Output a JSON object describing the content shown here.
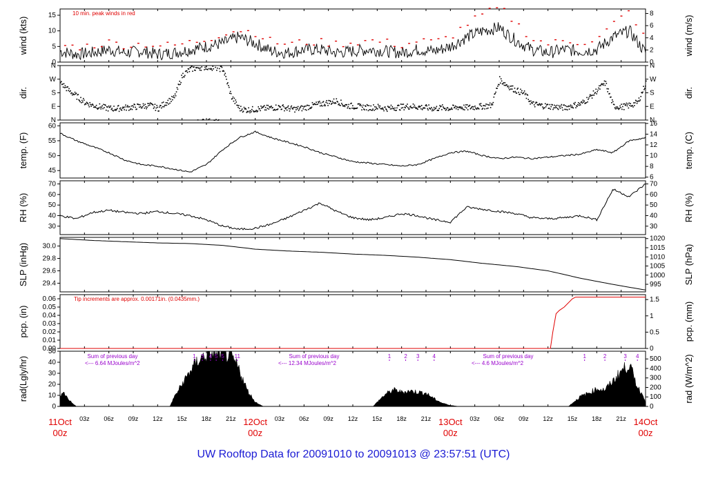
{
  "footer_text": "UW Rooftop Data for 20091010  to  20091013 @ 23:57:51  (UTC)",
  "colors": {
    "axis": "#000000",
    "red": "#e00000",
    "purple": "#9900cc",
    "footer": "#1a1ad4"
  },
  "x_axis": {
    "hour_ticks": [
      "03z",
      "06z",
      "09z",
      "12z",
      "15z",
      "18z",
      "21z",
      "03z",
      "06z",
      "09z",
      "12z",
      "15z",
      "18z",
      "21z",
      "03z",
      "06z",
      "09z",
      "12z",
      "15z",
      "18z",
      "21z"
    ],
    "day_labels": [
      {
        "day": "11Oct",
        "time": "00z"
      },
      {
        "day": "12Oct",
        "time": "00z"
      },
      {
        "day": "13Oct",
        "time": "00z"
      },
      {
        "day": "14Oct",
        "time": "00z"
      }
    ]
  },
  "chart_data": [
    {
      "name": "wind",
      "type": "line",
      "ylabel_left": "wind (kts)",
      "ylabel_right": "wind (m/s)",
      "annotation": "10 min. peak winds in red",
      "left_ticks": [
        "0",
        "5",
        "10",
        "15"
      ],
      "right_ticks": [
        "0",
        "2",
        "4",
        "6",
        "8"
      ],
      "ylim": [
        0,
        17
      ],
      "series": [
        {
          "role": "mean",
          "x": [
            0,
            2,
            4,
            6,
            8,
            10,
            12,
            14,
            16,
            18,
            20,
            22,
            24,
            26,
            28,
            30,
            32,
            34,
            36,
            38,
            40,
            42,
            44,
            46,
            48,
            50,
            52,
            54,
            56,
            58,
            60,
            62,
            64,
            66,
            68,
            70,
            72
          ],
          "values": [
            3.5,
            2.5,
            3,
            4,
            3,
            3.5,
            2.5,
            3,
            4,
            5,
            6,
            8,
            6,
            3.5,
            3,
            4,
            4,
            3,
            3.5,
            4,
            3.5,
            3,
            4,
            3.5,
            5,
            8,
            10,
            11,
            7,
            4,
            3,
            4,
            3.5,
            4,
            8,
            10,
            3
          ]
        },
        {
          "role": "peak",
          "color": "red",
          "x": [
            0,
            2,
            4,
            6,
            8,
            10,
            12,
            14,
            16,
            18,
            20,
            22,
            24,
            26,
            28,
            30,
            32,
            34,
            36,
            38,
            40,
            42,
            44,
            46,
            48,
            50,
            52,
            54,
            56,
            58,
            60,
            62,
            64,
            66,
            68,
            70,
            72
          ],
          "values": [
            5,
            4.5,
            5,
            6,
            5,
            5.5,
            5,
            5,
            6,
            7,
            9,
            10,
            9,
            6,
            5.5,
            6,
            6,
            5.5,
            6,
            6.5,
            6,
            5,
            6.5,
            6,
            8,
            12,
            15,
            17,
            12,
            7,
            5.5,
            6.5,
            6,
            7,
            12,
            16,
            6
          ]
        }
      ]
    },
    {
      "name": "dir",
      "type": "scatter",
      "ylabel_left": "dir.",
      "ylabel_right": "dir.",
      "categories": [
        "N",
        "E",
        "S",
        "W",
        "N"
      ],
      "x": [
        0,
        1,
        2,
        3,
        4,
        5,
        6,
        7,
        8,
        9,
        10,
        11,
        12,
        13,
        14,
        15,
        16,
        17,
        18,
        19,
        20,
        21,
        22,
        23,
        24,
        25,
        26,
        27,
        28,
        29,
        30,
        31,
        32,
        33,
        34,
        35,
        36,
        37,
        38,
        39,
        40,
        41,
        42,
        43,
        44,
        45,
        46,
        47,
        48,
        49,
        50,
        51,
        52,
        53,
        54,
        55,
        56,
        57,
        58,
        59,
        60,
        61,
        62,
        63,
        64,
        65,
        66,
        67,
        68,
        69,
        70,
        71,
        72
      ],
      "values": [
        250,
        200,
        160,
        120,
        100,
        90,
        80,
        80,
        85,
        90,
        95,
        100,
        80,
        120,
        150,
        300,
        340,
        350,
        355,
        350,
        340,
        160,
        80,
        70,
        75,
        80,
        85,
        90,
        80,
        75,
        85,
        100,
        110,
        120,
        130,
        100,
        95,
        90,
        85,
        90,
        80,
        85,
        90,
        95,
        90,
        85,
        80,
        85,
        80,
        90,
        85,
        90,
        95,
        100,
        270,
        230,
        200,
        180,
        110,
        100,
        95,
        90,
        85,
        100,
        110,
        150,
        200,
        250,
        95,
        90,
        100,
        120,
        250
      ]
    },
    {
      "name": "temp",
      "type": "line",
      "ylabel_left": "temp. (F)",
      "ylabel_right": "temp. (C)",
      "left_ticks": [
        "45",
        "50",
        "55",
        "60"
      ],
      "right_ticks": [
        "6",
        "8",
        "10",
        "12",
        "14",
        "16"
      ],
      "ylim": [
        42.5,
        61
      ],
      "x": [
        0,
        2,
        4,
        6,
        8,
        10,
        12,
        14,
        16,
        18,
        20,
        22,
        24,
        26,
        28,
        30,
        32,
        34,
        36,
        38,
        40,
        42,
        44,
        46,
        48,
        50,
        52,
        54,
        56,
        58,
        60,
        62,
        64,
        66,
        68,
        70,
        72
      ],
      "values": [
        57.5,
        55,
        53,
        51,
        48.5,
        47,
        46.5,
        45.5,
        44.5,
        47,
        52,
        56,
        58,
        56,
        54.5,
        53,
        51,
        49.5,
        48,
        47.5,
        47,
        46.5,
        47,
        49,
        51,
        51.5,
        50,
        49,
        49.5,
        49,
        49.5,
        50,
        50.5,
        52,
        51,
        55,
        56
      ]
    },
    {
      "name": "rh",
      "type": "line",
      "ylabel_left": "RH (%)",
      "ylabel_right": "RH (%)",
      "left_ticks": [
        "30",
        "40",
        "50",
        "60",
        "70"
      ],
      "right_ticks": [
        "30",
        "40",
        "50",
        "60",
        "70"
      ],
      "ylim": [
        22,
        73
      ],
      "x": [
        0,
        2,
        4,
        6,
        8,
        10,
        12,
        14,
        16,
        18,
        20,
        22,
        24,
        26,
        28,
        30,
        32,
        34,
        36,
        38,
        40,
        42,
        44,
        46,
        48,
        50,
        52,
        54,
        56,
        58,
        60,
        62,
        64,
        66,
        68,
        70,
        72
      ],
      "values": [
        40,
        37,
        43,
        45,
        43,
        42,
        44,
        42,
        40,
        36,
        30,
        27,
        28,
        32,
        38,
        45,
        52,
        44,
        38,
        36,
        38,
        42,
        40,
        36,
        34,
        48,
        46,
        44,
        42,
        38,
        37,
        38,
        40,
        36,
        65,
        58,
        70
      ]
    },
    {
      "name": "slp",
      "type": "line",
      "ylabel_left": "SLP (inHg)",
      "ylabel_right": "SLP (hPa)",
      "left_ticks": [
        "29.4",
        "29.6",
        "29.8",
        "30.0"
      ],
      "right_ticks": [
        "995",
        "1000",
        "1005",
        "1010",
        "1015",
        "1020"
      ],
      "ylim": [
        29.26,
        30.14
      ],
      "x": [
        0,
        4,
        8,
        12,
        16,
        20,
        24,
        28,
        32,
        36,
        40,
        44,
        48,
        52,
        56,
        60,
        64,
        68,
        72
      ],
      "values": [
        30.12,
        30.09,
        30.07,
        30.05,
        30.04,
        30.01,
        29.95,
        29.92,
        29.9,
        29.87,
        29.85,
        29.82,
        29.78,
        29.72,
        29.67,
        29.6,
        29.48,
        29.38,
        29.29
      ]
    },
    {
      "name": "pcp",
      "type": "line",
      "ylabel_left": "pcp. (in)",
      "ylabel_right": "pcp. (mm)",
      "annotation": "Tip increments are approx. 0.00171in. (0.0435mm.)",
      "left_ticks": [
        "0.00",
        "0.01",
        "0.02",
        "0.03",
        "0.04",
        "0.05",
        "0.06"
      ],
      "right_ticks": [
        "0",
        "0.5",
        "1",
        "1.5"
      ],
      "ylim": [
        0,
        0.065
      ],
      "x": [
        0,
        60.3,
        60.6,
        61,
        61.4,
        62,
        63,
        63.4,
        72
      ],
      "values": [
        0,
        0,
        0.02,
        0.042,
        0.046,
        0.05,
        0.06,
        0.062,
        0.062
      ]
    },
    {
      "name": "rad",
      "type": "area",
      "ylabel_left": "rad(Lgly/hr)",
      "ylabel_right": "rad (W/m^2)",
      "left_ticks": [
        "0",
        "10",
        "20",
        "30",
        "40",
        "50"
      ],
      "right_ticks": [
        "0",
        "100",
        "200",
        "300",
        "400",
        "500"
      ],
      "ylim": [
        0,
        50
      ],
      "x": [
        0,
        0.5,
        1,
        1.5,
        2,
        13.5,
        14,
        15,
        16,
        17,
        18,
        19,
        20,
        21,
        22,
        23,
        24,
        24.5,
        25,
        38.5,
        39,
        40,
        41,
        42,
        43,
        44,
        45,
        46,
        47,
        48,
        49,
        62.5,
        63,
        64,
        65,
        66,
        67,
        68,
        69,
        70,
        71,
        72
      ],
      "values": [
        10,
        12,
        7,
        3,
        0,
        0,
        8,
        20,
        32,
        42,
        47,
        49,
        49,
        45,
        34,
        15,
        4,
        2,
        0,
        0,
        4,
        11,
        15,
        13,
        14,
        13,
        12,
        7,
        3,
        1,
        0,
        0,
        3,
        9,
        12,
        16,
        15,
        23,
        32,
        38,
        18,
        6
      ],
      "annotations": [
        {
          "text": "Sum of previous day",
          "sub": "<--- 6.64 MJoules/m^2"
        },
        {
          "text": "Sum of previous day",
          "sub": "<--- 12.34 MJoules/m^2"
        },
        {
          "text": "Sum of previous day",
          "sub": "<--- 4.6 MJoules/m^2"
        }
      ],
      "cloud_markers": [
        {
          "x": 16.5,
          "label": "1"
        },
        {
          "x": 17.5,
          "label": "3"
        },
        {
          "x": 18.5,
          "label": "4"
        },
        {
          "x": 19.2,
          "label": "5"
        },
        {
          "x": 20,
          "label": "5"
        },
        {
          "x": 21.8,
          "label": "11"
        },
        {
          "x": 40.5,
          "label": "1"
        },
        {
          "x": 42.5,
          "label": "2"
        },
        {
          "x": 44,
          "label": "3"
        },
        {
          "x": 46,
          "label": "4"
        },
        {
          "x": 64.5,
          "label": "1"
        },
        {
          "x": 67,
          "label": "2"
        },
        {
          "x": 69.5,
          "label": "3"
        },
        {
          "x": 71,
          "label": "4"
        }
      ]
    }
  ]
}
